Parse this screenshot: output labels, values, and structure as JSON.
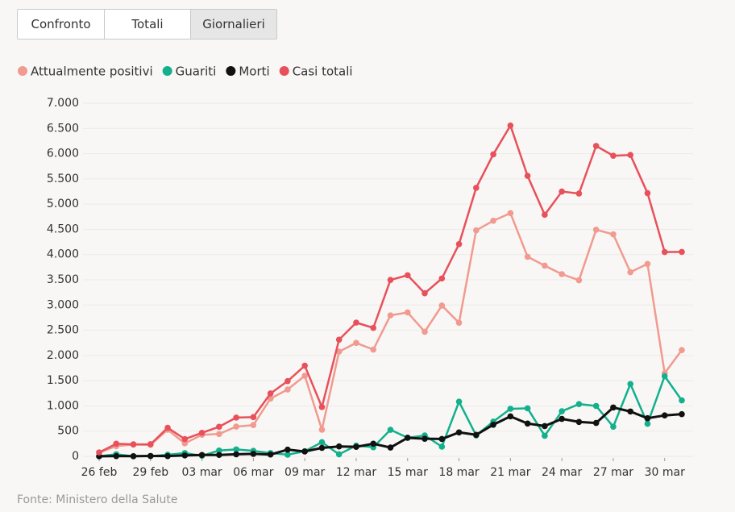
{
  "buttons": [
    "Confronto",
    "Totali",
    "Giornalieri"
  ],
  "selected": 2,
  "chart_data": {
    "type": "line",
    "categories": [
      "26 feb",
      null,
      null,
      "29 feb",
      null,
      null,
      "03 mar",
      null,
      null,
      "06 mar",
      null,
      null,
      "09 mar",
      null,
      null,
      "12 mar",
      null,
      null,
      "15 mar",
      null,
      null,
      "18 mar",
      null,
      null,
      "21 mar",
      null,
      null,
      "24 mar",
      null,
      null,
      "27 mar",
      null,
      null,
      "30 mar",
      null
    ],
    "series": [
      {
        "name": "Attualmente positivi",
        "color": "#f19a8f",
        "values": [
          74,
          203,
          233,
          228,
          528,
          258,
          428,
          443,
          590,
          620,
          1145,
          1326,
          1598,
          529,
          2076,
          2249,
          2116,
          2795,
          2853,
          2470,
          2989,
          2648,
          4480,
          4670,
          4821,
          3957,
          3780,
          3612,
          3491,
          4492,
          4401,
          3651,
          3815,
          1648,
          2107
        ]
      },
      {
        "name": "Guariti",
        "color": "#12b08c",
        "values": [
          2,
          42,
          1,
          4,
          33,
          66,
          11,
          116,
          138,
          109,
          66,
          33,
          102,
          280,
          41,
          213,
          181,
          527,
          369,
          414,
          192,
          1084,
          415,
          689,
          943,
          952,
          408,
          894,
          1036,
          999,
          589,
          1434,
          646,
          1590,
          1109
        ]
      },
      {
        "name": "Morti",
        "color": "#111111",
        "values": [
          2,
          5,
          4,
          8,
          5,
          18,
          27,
          28,
          41,
          49,
          36,
          133,
          97,
          168,
          196,
          189,
          250,
          175,
          368,
          349,
          345,
          475,
          427,
          627,
          793,
          651,
          601,
          743,
          683,
          662,
          969,
          889,
          756,
          812,
          837
        ]
      },
      {
        "name": "Casi totali",
        "color": "#e8505b",
        "values": [
          78,
          250,
          238,
          240,
          566,
          342,
          466,
          587,
          769,
          778,
          1247,
          1492,
          1797,
          977,
          2313,
          2651,
          2547,
          3497,
          3590,
          3233,
          3526,
          4207,
          5322,
          5986,
          6557,
          5560,
          4789,
          5249,
          5210,
          6153,
          5959,
          5974,
          5217,
          4050,
          4053
        ]
      }
    ],
    "ylim": [
      0,
      7000
    ],
    "yticks": [
      0,
      500,
      {
        "value": 1000,
        "label": "1.000"
      },
      {
        "value": 1500,
        "label": "1.500"
      },
      {
        "value": 2000,
        "label": "2.000"
      },
      {
        "value": 2500,
        "label": "2.500"
      },
      {
        "value": 3000,
        "label": "3.000"
      },
      {
        "value": 3500,
        "label": "3.500"
      },
      {
        "value": 4000,
        "label": "4.000"
      },
      {
        "value": 4500,
        "label": "4.500"
      },
      {
        "value": 5000,
        "label": "5.000"
      },
      {
        "value": 5500,
        "label": "5.500"
      },
      {
        "value": 6000,
        "label": "6.000"
      },
      {
        "value": 6500,
        "label": "6.500"
      },
      {
        "value": 7000,
        "label": "7.000"
      }
    ],
    "grid": true,
    "source": "Fonte: Ministero della Salute"
  }
}
